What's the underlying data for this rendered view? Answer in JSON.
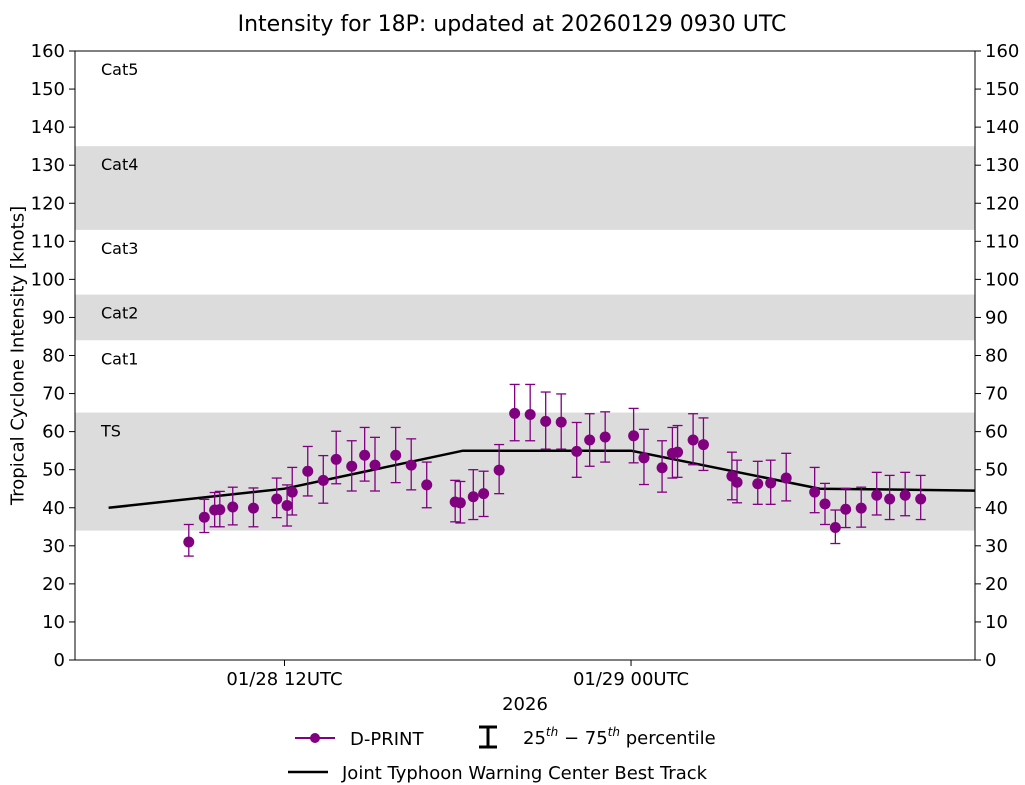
{
  "chart_data": {
    "type": "scatter",
    "title": "Intensity for 18P: updated at 20260129 0930 UTC",
    "ylabel": "Tropical Cyclone Intensity [knots]",
    "xlabel": "2026",
    "ylim": [
      0,
      160
    ],
    "xlim_hours": [
      -10.4,
      24.4
    ],
    "yticks": [
      0,
      10,
      20,
      30,
      40,
      50,
      60,
      70,
      80,
      90,
      100,
      110,
      120,
      130,
      140,
      150,
      160
    ],
    "ytick_labels": [
      "0",
      "10",
      "20",
      "30",
      "40",
      "50",
      "60",
      "70",
      "80",
      "90",
      "100",
      "110",
      "120",
      "130",
      "140",
      "150",
      "160"
    ],
    "xticks": [
      {
        "hour": -2.3,
        "label": "01/28 12UTC"
      },
      {
        "hour": 11.1,
        "label": "01/29 00UTC"
      }
    ],
    "bands": [
      {
        "from": 34,
        "to": 65,
        "label": "TS",
        "shaded": true
      },
      {
        "from": 65,
        "to": 84,
        "label": "Cat1",
        "shaded": false
      },
      {
        "from": 84,
        "to": 96,
        "label": "Cat2",
        "shaded": true
      },
      {
        "from": 96,
        "to": 113,
        "label": "Cat3",
        "shaded": false
      },
      {
        "from": 113,
        "to": 135,
        "label": "Cat4",
        "shaded": true
      },
      {
        "from": 135,
        "to": 160,
        "label": "Cat5",
        "shaded": false
      }
    ],
    "band_color": "#dcdcdc",
    "dprint_color": "#800080",
    "best_track_color": "#000000",
    "dprint": {
      "name": "D-PRINT",
      "points": [
        {
          "x": -6.0,
          "y": 31,
          "lo": 27.3,
          "hi": 35.6
        },
        {
          "x": -5.4,
          "y": 37.5,
          "lo": 33.5,
          "hi": 42.2
        },
        {
          "x": -5.0,
          "y": 39.4,
          "lo": 35.0,
          "hi": 44.0
        },
        {
          "x": -4.8,
          "y": 39.5,
          "lo": 35.0,
          "hi": 44.3
        },
        {
          "x": -4.3,
          "y": 40.2,
          "lo": 35.5,
          "hi": 45.4
        },
        {
          "x": -3.5,
          "y": 39.9,
          "lo": 35.0,
          "hi": 45.2
        },
        {
          "x": -2.6,
          "y": 42.3,
          "lo": 37.4,
          "hi": 47.8
        },
        {
          "x": -2.2,
          "y": 40.6,
          "lo": 35.2,
          "hi": 46.0
        },
        {
          "x": -2.0,
          "y": 44.1,
          "lo": 38.1,
          "hi": 50.6
        },
        {
          "x": -1.4,
          "y": 49.6,
          "lo": 43.1,
          "hi": 56.1
        },
        {
          "x": -0.8,
          "y": 47.2,
          "lo": 41.2,
          "hi": 53.7
        },
        {
          "x": -0.3,
          "y": 52.7,
          "lo": 46.3,
          "hi": 60.1
        },
        {
          "x": 0.3,
          "y": 50.9,
          "lo": 44.4,
          "hi": 57.6
        },
        {
          "x": 0.8,
          "y": 53.8,
          "lo": 47.0,
          "hi": 61.1
        },
        {
          "x": 1.2,
          "y": 51.2,
          "lo": 44.4,
          "hi": 58.5
        },
        {
          "x": 2.0,
          "y": 53.8,
          "lo": 46.6,
          "hi": 61.1
        },
        {
          "x": 2.6,
          "y": 51.2,
          "lo": 44.7,
          "hi": 58.1
        },
        {
          "x": 3.2,
          "y": 46.0,
          "lo": 40.0,
          "hi": 52.0
        },
        {
          "x": 4.3,
          "y": 41.5,
          "lo": 36.3,
          "hi": 47.2
        },
        {
          "x": 4.5,
          "y": 41.3,
          "lo": 36.0,
          "hi": 46.9
        },
        {
          "x": 5.0,
          "y": 42.9,
          "lo": 36.9,
          "hi": 50.0
        },
        {
          "x": 5.4,
          "y": 43.7,
          "lo": 37.7,
          "hi": 49.6
        },
        {
          "x": 6.0,
          "y": 49.9,
          "lo": 43.7,
          "hi": 56.6
        },
        {
          "x": 6.6,
          "y": 64.8,
          "lo": 57.6,
          "hi": 72.4
        },
        {
          "x": 7.2,
          "y": 64.5,
          "lo": 57.6,
          "hi": 72.4
        },
        {
          "x": 7.8,
          "y": 62.7,
          "lo": 55.4,
          "hi": 70.4
        },
        {
          "x": 8.4,
          "y": 62.5,
          "lo": 55.4,
          "hi": 69.9
        },
        {
          "x": 9.0,
          "y": 54.8,
          "lo": 48.0,
          "hi": 62.4
        },
        {
          "x": 9.5,
          "y": 57.8,
          "lo": 50.9,
          "hi": 64.7
        },
        {
          "x": 10.1,
          "y": 58.6,
          "lo": 52.0,
          "hi": 65.2
        },
        {
          "x": 11.2,
          "y": 58.9,
          "lo": 51.8,
          "hi": 66.1
        },
        {
          "x": 11.6,
          "y": 53.1,
          "lo": 46.1,
          "hi": 60.6
        },
        {
          "x": 12.3,
          "y": 50.5,
          "lo": 44.1,
          "hi": 57.6
        },
        {
          "x": 12.7,
          "y": 54.3,
          "lo": 47.8,
          "hi": 61.1
        },
        {
          "x": 12.9,
          "y": 54.6,
          "lo": 48.0,
          "hi": 61.6
        },
        {
          "x": 13.5,
          "y": 57.8,
          "lo": 51.3,
          "hi": 64.7
        },
        {
          "x": 13.9,
          "y": 56.6,
          "lo": 49.8,
          "hi": 63.6
        },
        {
          "x": 15.0,
          "y": 48.3,
          "lo": 42.1,
          "hi": 54.6
        },
        {
          "x": 15.2,
          "y": 46.7,
          "lo": 41.3,
          "hi": 52.5
        },
        {
          "x": 16.0,
          "y": 46.3,
          "lo": 40.9,
          "hi": 52.2
        },
        {
          "x": 16.5,
          "y": 46.5,
          "lo": 40.9,
          "hi": 52.5
        },
        {
          "x": 17.1,
          "y": 47.8,
          "lo": 41.8,
          "hi": 54.3
        },
        {
          "x": 18.2,
          "y": 44.1,
          "lo": 38.7,
          "hi": 50.6
        },
        {
          "x": 18.6,
          "y": 41.0,
          "lo": 35.6,
          "hi": 46.4
        },
        {
          "x": 19.0,
          "y": 34.8,
          "lo": 30.6,
          "hi": 39.4
        },
        {
          "x": 19.4,
          "y": 39.6,
          "lo": 34.8,
          "hi": 45.1
        },
        {
          "x": 20.0,
          "y": 39.9,
          "lo": 34.9,
          "hi": 45.4
        },
        {
          "x": 20.6,
          "y": 43.3,
          "lo": 38.1,
          "hi": 49.3
        },
        {
          "x": 21.1,
          "y": 42.3,
          "lo": 36.9,
          "hi": 48.5
        },
        {
          "x": 21.7,
          "y": 43.3,
          "lo": 37.9,
          "hi": 49.3
        },
        {
          "x": 22.3,
          "y": 42.3,
          "lo": 36.9,
          "hi": 48.5
        }
      ]
    },
    "best_track": {
      "name": "Joint Typhoon Warning Center Best Track",
      "x": [
        -9.1,
        -2.3,
        4.6,
        11.1,
        18.4,
        24.4
      ],
      "y": [
        40,
        45,
        55,
        55,
        45,
        44.5
      ]
    },
    "legend": {
      "position": "bottom-center",
      "entries": [
        "D-PRINT",
        "25th-75th percentile",
        "Joint Typhoon Warning Center Best Track"
      ],
      "percentile_base": "25",
      "percentile_low_sup": "th",
      "percentile_dash": " − ",
      "percentile_high_base": "75",
      "percentile_high_sup": "th",
      "percentile_word": " percentile"
    }
  }
}
